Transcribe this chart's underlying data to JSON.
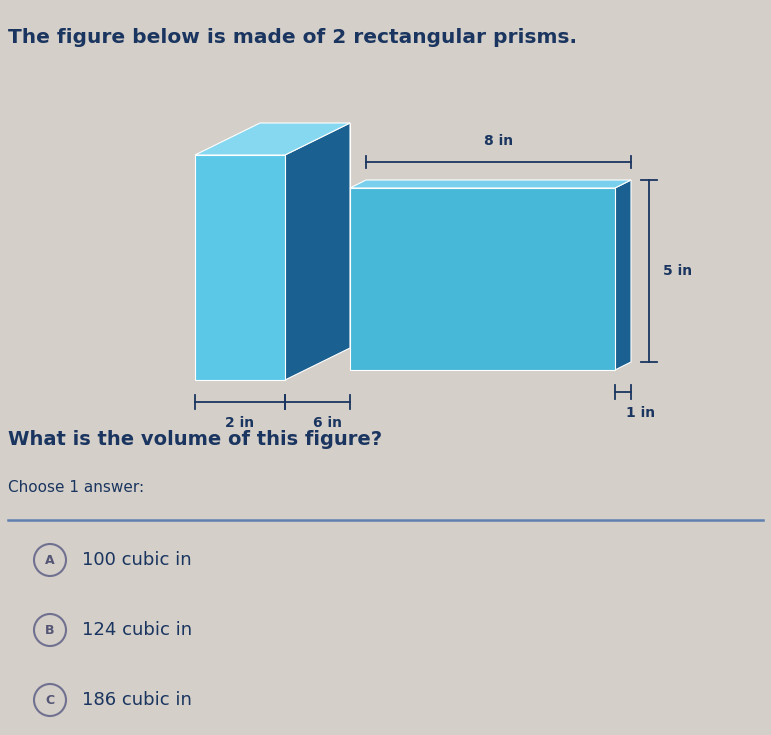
{
  "title": "The figure below is made of 2 rectangular prisms.",
  "question": "What is the volume of this figure?",
  "choose_label": "Choose 1 answer:",
  "answers": [
    {
      "letter": "A",
      "text": "100 cubic in"
    },
    {
      "letter": "B",
      "text": "124 cubic in"
    },
    {
      "letter": "C",
      "text": "186 cubic in"
    }
  ],
  "dim_labels": {
    "top_width": "8 in",
    "right_height": "5 in",
    "right_depth": "1 in",
    "left_depth": "6 in",
    "left_width": "2 in"
  },
  "bg_color": "#d4cfc8",
  "prism_left_front": "#5bc8e8",
  "prism_left_side": "#1a6090",
  "prism_left_top": "#85d8f0",
  "prism_right_front": "#48b8d8",
  "prism_right_side": "#1a6090",
  "prism_right_top": "#78d0ec",
  "title_color": "#1a3560",
  "text_color": "#1a3560",
  "dim_color": "#1a3560",
  "line_color": "#6080b0"
}
